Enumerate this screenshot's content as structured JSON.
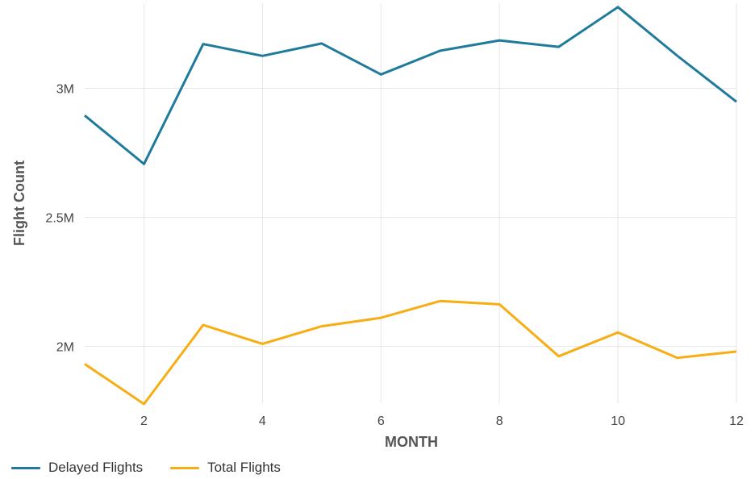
{
  "chart_data": {
    "type": "line",
    "xlabel": "MONTH",
    "ylabel": "Flight Count",
    "x": [
      1,
      2,
      3,
      4,
      5,
      6,
      7,
      8,
      9,
      10,
      11,
      12
    ],
    "xlim": [
      1,
      12
    ],
    "ylim": [
      1780000,
      3330000
    ],
    "x_ticks": [
      2,
      4,
      6,
      8,
      10,
      12
    ],
    "x_tick_labels": [
      "2",
      "4",
      "6",
      "8",
      "10",
      "12"
    ],
    "y_ticks": [
      2000000,
      2500000,
      3000000
    ],
    "y_tick_labels": [
      "2M",
      "2.5M",
      "3M"
    ],
    "grid": true,
    "legend_position": "bottom-left",
    "series": [
      {
        "name": "Delayed Flights",
        "color": "#1e7b9b",
        "values": [
          2895000,
          2707000,
          3172000,
          3126000,
          3174000,
          3054000,
          3146000,
          3186000,
          3161000,
          3315000,
          3127000,
          2948000
        ]
      },
      {
        "name": "Total Flights",
        "color": "#f6ae13",
        "values": [
          1932000,
          1777000,
          2083000,
          2010000,
          2078000,
          2111000,
          2176000,
          2163000,
          1962000,
          2054000,
          1956000,
          1980000
        ]
      }
    ]
  }
}
